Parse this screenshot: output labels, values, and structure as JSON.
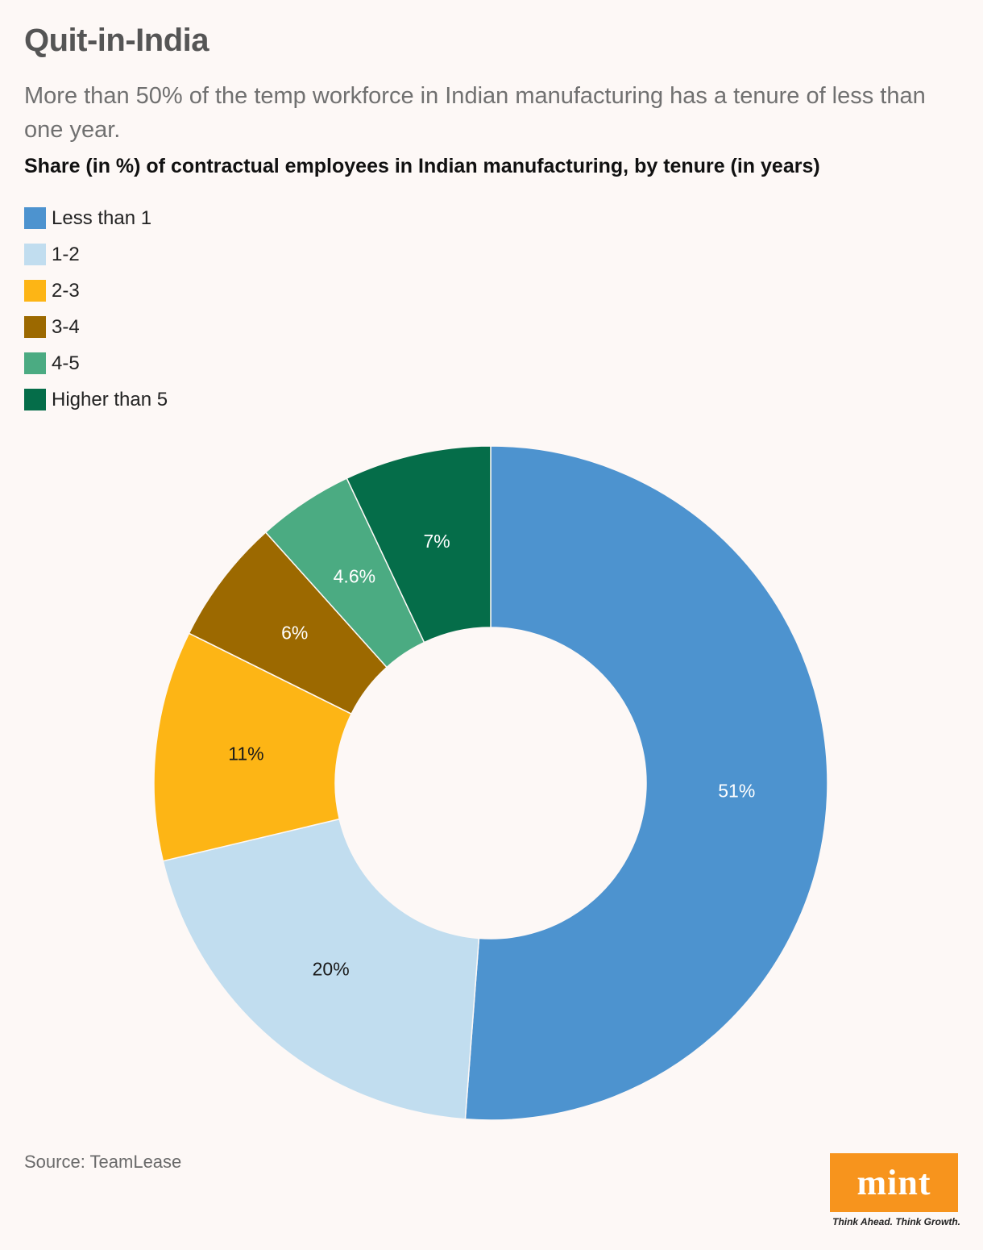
{
  "header": {
    "title": "Quit-in-India",
    "subtitle": "More than 50% of the temp workforce in Indian manufacturing has a tenure of less than one year.",
    "chart_heading": "Share (in %) of contractual employees in Indian manufacturing, by tenure (in years)"
  },
  "chart_data": {
    "type": "pie",
    "variant": "donut",
    "title": "Share (in %) of contractual employees in Indian manufacturing, by tenure (in years)",
    "legend_position": "top-left",
    "categories": [
      "Less than 1",
      "1-2",
      "2-3",
      "3-4",
      "4-5",
      "Higher than 5"
    ],
    "values": [
      51,
      20,
      11,
      6,
      4.6,
      7
    ],
    "data_labels": [
      "51%",
      "20%",
      "11%",
      "6%",
      "4.6%",
      "7%"
    ],
    "colors": [
      "#4d93cf",
      "#c1ddef",
      "#fdb515",
      "#9c6900",
      "#4bab82",
      "#056d49"
    ],
    "label_colors": [
      "#ffffff",
      "#1a1a1a",
      "#1a1a1a",
      "#ffffff",
      "#ffffff",
      "#ffffff"
    ]
  },
  "footer": {
    "source": "Source: TeamLease",
    "logo_text": "mint",
    "tagline": "Think Ahead. Think Growth."
  }
}
